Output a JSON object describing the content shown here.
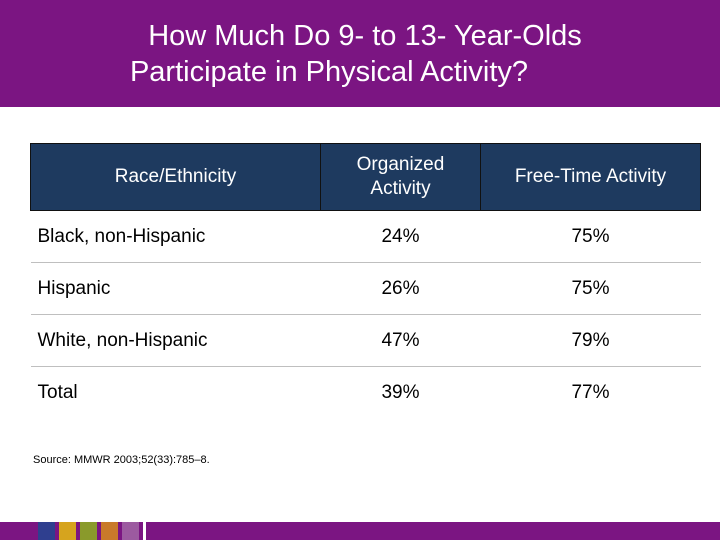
{
  "slide": {
    "title_line1": "How Much Do 9- to 13- Year-Olds",
    "title_line2": "Participate in Physical Activity?",
    "accent_color": "#7b1582",
    "table_header_color": "#1e3a5f"
  },
  "table": {
    "headers": [
      "Race/Ethnicity",
      "Organized Activity",
      "Free-Time Activity"
    ],
    "rows": [
      {
        "label": "Black, non-Hispanic",
        "organized": "24%",
        "free_time": "75%"
      },
      {
        "label": "Hispanic",
        "organized": "26%",
        "free_time": "75%"
      },
      {
        "label": "White, non-Hispanic",
        "organized": "47%",
        "free_time": "79%"
      },
      {
        "label": "Total",
        "organized": "39%",
        "free_time": "77%"
      }
    ]
  },
  "source": "Source: MMWR 2003;52(33):785–8.",
  "footer": {
    "swatch_colors": [
      "#2f3f8f",
      "#d6a41e",
      "#8a9a2b",
      "#c97a2a",
      "#9c5aa0"
    ]
  }
}
